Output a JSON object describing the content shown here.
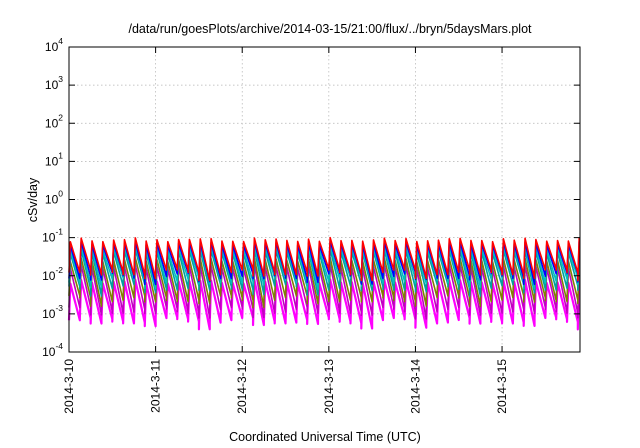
{
  "chart_data": {
    "type": "area",
    "title": "/data/run/goesPlots/archive/2014-03-15/21:00/flux/../bryn/5daysMars.plot",
    "xlabel": "Coordinated Universal Time (UTC)",
    "ylabel": "cSv/day",
    "x_start": "2014-03-10",
    "x_range_days": [
      0,
      5.9
    ],
    "x_ticks": [
      {
        "day": 0,
        "label": "2014-3-10"
      },
      {
        "day": 1,
        "label": "2014-3-11"
      },
      {
        "day": 2,
        "label": "2014-3-12"
      },
      {
        "day": 3,
        "label": "2014-3-13"
      },
      {
        "day": 4,
        "label": "2014-3-14"
      },
      {
        "day": 5,
        "label": "2014-3-15"
      }
    ],
    "y_scale": "log",
    "ylim": [
      0.0001,
      10000
    ],
    "y_ticks": [
      {
        "value": 0.0001,
        "base": "10",
        "exp": "-4"
      },
      {
        "value": 0.001,
        "base": "10",
        "exp": "-3"
      },
      {
        "value": 0.01,
        "base": "10",
        "exp": "-2"
      },
      {
        "value": 0.1,
        "base": "10",
        "exp": "-1"
      },
      {
        "value": 1,
        "base": "10",
        "exp": "0"
      },
      {
        "value": 10,
        "base": "10",
        "exp": "1"
      },
      {
        "value": 100,
        "base": "10",
        "exp": "2"
      },
      {
        "value": 1000,
        "base": "10",
        "exp": "3"
      },
      {
        "value": 10000,
        "base": "10",
        "exp": "4"
      }
    ],
    "grid": true,
    "legend": "none",
    "series": [
      {
        "color": "#ff00ff",
        "min": 0.0008,
        "max": 0.008
      },
      {
        "color": "#c000c0",
        "min": 0.0015,
        "max": 0.02
      },
      {
        "color": "#808000",
        "min": 0.003,
        "max": 0.03
      },
      {
        "color": "#00a0a0",
        "min": 0.006,
        "max": 0.05
      },
      {
        "color": "#00c0c0",
        "min": 0.009,
        "max": 0.06
      },
      {
        "color": "#0000ff",
        "min": 0.012,
        "max": 0.08
      },
      {
        "color": "#ff0000",
        "min": 0.015,
        "max": 0.1
      }
    ],
    "cycles_per_day": 8
  }
}
